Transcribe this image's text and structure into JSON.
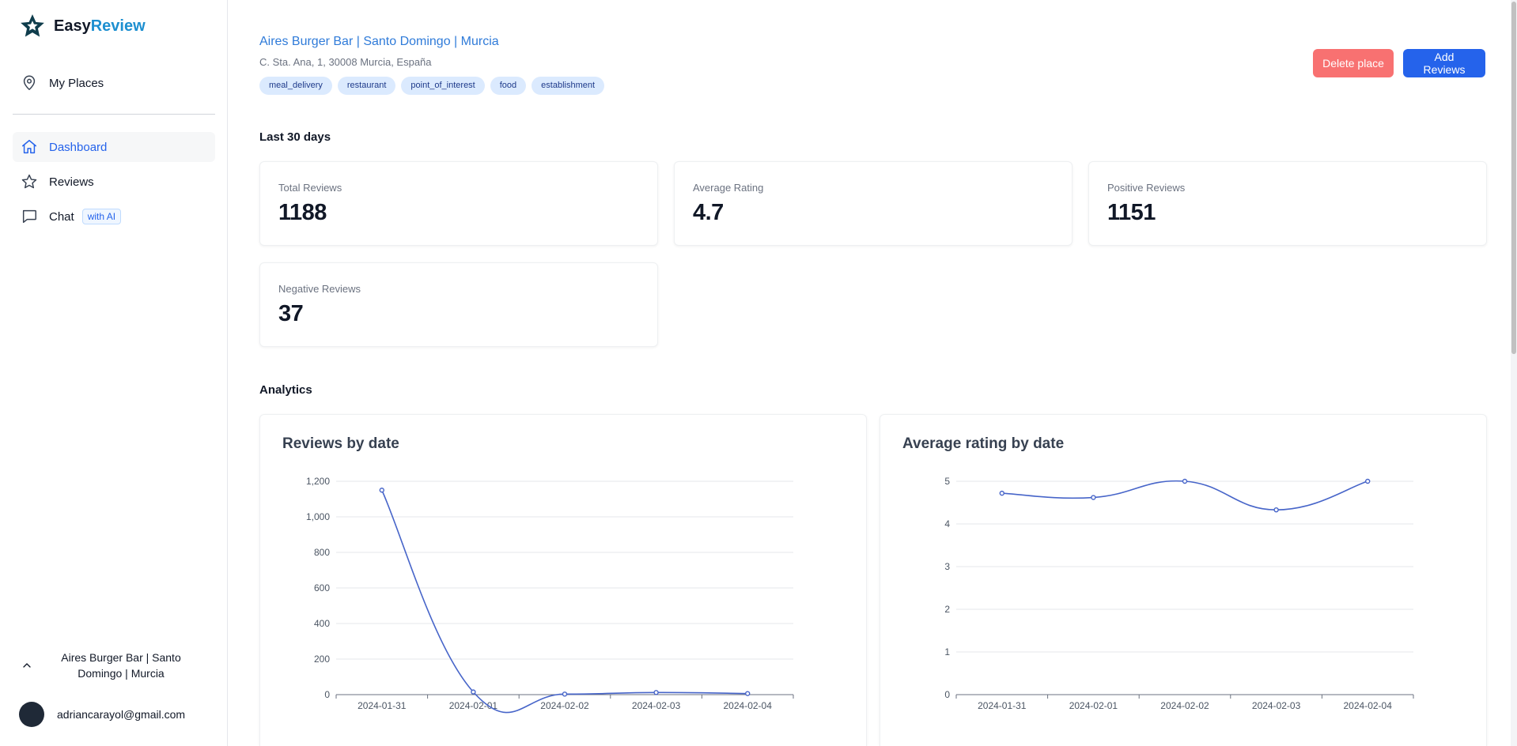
{
  "app": {
    "logo_prefix": "Easy",
    "logo_accent": "Review",
    "brand_color": "#1d8fd0"
  },
  "sidebar": {
    "my_places": "My Places",
    "items": [
      {
        "label": "Dashboard",
        "icon": "home-icon",
        "active": true
      },
      {
        "label": "Reviews",
        "icon": "star-icon",
        "active": false
      },
      {
        "label": "Chat",
        "icon": "chat-bubble-icon",
        "active": false,
        "badge": "with AI"
      }
    ],
    "current_place": "Aires Burger Bar | Santo Domingo | Murcia",
    "user_email": "adriancarayol@gmail.com"
  },
  "place": {
    "name": "Aires Burger Bar | Santo Domingo | Murcia",
    "address": "C. Sta. Ana, 1, 30008 Murcia, España",
    "tags": [
      "meal_delivery",
      "restaurant",
      "point_of_interest",
      "food",
      "establishment"
    ]
  },
  "actions": {
    "delete": "Delete place",
    "add": "Add Reviews"
  },
  "stats": {
    "period": "Last 30 days",
    "total": {
      "label": "Total Reviews",
      "value": "1188"
    },
    "average": {
      "label": "Average Rating",
      "value": "4.7"
    },
    "positive": {
      "label": "Positive Reviews",
      "value": "1151"
    },
    "negative": {
      "label": "Negative Reviews",
      "value": "37"
    }
  },
  "analytics": {
    "title": "Analytics"
  },
  "chart_data": [
    {
      "type": "line",
      "title": "Reviews by date",
      "categories": [
        "2024-01-31",
        "2024-02-01",
        "2024-02-02",
        "2024-02-03",
        "2024-02-04"
      ],
      "series": [
        {
          "values": [
            1150,
            15,
            3,
            12,
            6
          ]
        }
      ],
      "yticks": [
        0,
        200,
        400,
        600,
        800,
        1000,
        1200
      ],
      "ytick_labels": [
        "0",
        "200",
        "400",
        "600",
        "800",
        "1,000",
        "1,200"
      ],
      "ylim": [
        0,
        1200
      ],
      "grid": true,
      "color": "#4765c9"
    },
    {
      "type": "line",
      "title": "Average rating by date",
      "categories": [
        "2024-01-31",
        "2024-02-01",
        "2024-02-02",
        "2024-02-03",
        "2024-02-04"
      ],
      "series": [
        {
          "values": [
            4.72,
            4.62,
            5.0,
            4.33,
            5.0
          ]
        }
      ],
      "yticks": [
        0,
        1,
        2,
        3,
        4,
        5
      ],
      "ytick_labels": [
        "0",
        "1",
        "2",
        "3",
        "4",
        "5"
      ],
      "ylim": [
        0,
        5
      ],
      "grid": true,
      "color": "#4765c9"
    }
  ]
}
